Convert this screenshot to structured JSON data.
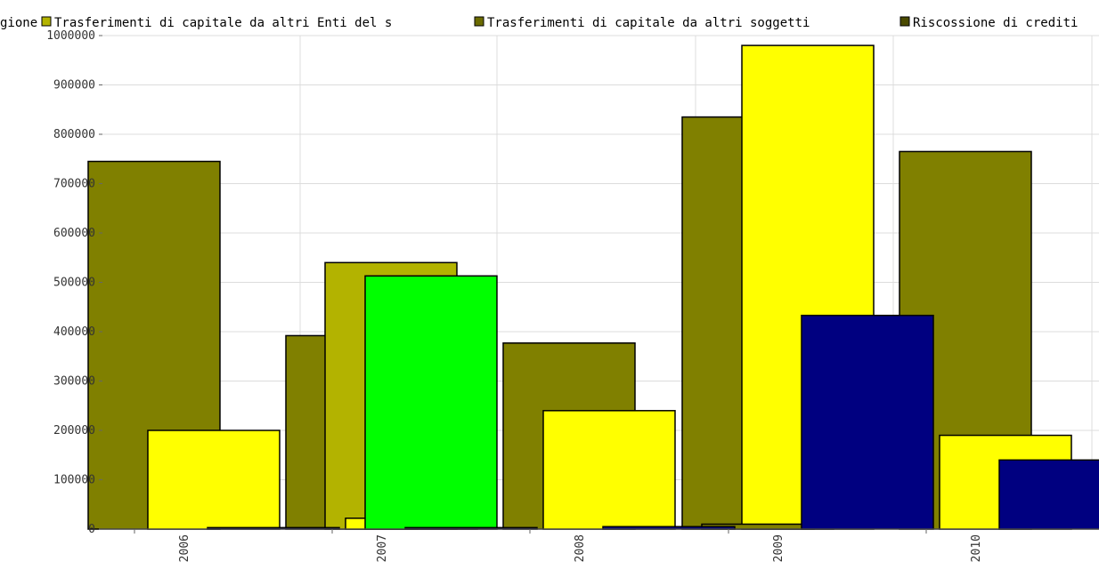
{
  "chart_data": {
    "type": "bar",
    "categories": [
      "2006",
      "2007",
      "2008",
      "2009",
      "2010"
    ],
    "ylim": [
      0,
      1000000
    ],
    "y_ticks": [
      0,
      100000,
      200000,
      300000,
      400000,
      500000,
      600000,
      700000,
      800000,
      900000,
      1000000
    ],
    "grid": true,
    "legend_position": "top",
    "legend_entries": [
      {
        "label": "gione",
        "color": "#808000"
      },
      {
        "label": "Trasferimenti di capitale da altri Enti del s",
        "color": "#b3b300"
      },
      {
        "label": "Trasferimenti di capitale da altri soggetti",
        "color": "#6b6b00"
      },
      {
        "label": "Riscossione di crediti",
        "color": "#4a4a00"
      }
    ],
    "series": [
      {
        "color": "#808000",
        "values": [
          745000,
          392000,
          0,
          835000,
          0
        ]
      },
      {
        "color": "#808000",
        "values": [
          0,
          0,
          377000,
          0,
          765000
        ]
      },
      {
        "color": "#b3b300",
        "values": [
          0,
          540000,
          0,
          0,
          0
        ]
      },
      {
        "color": "#ffff00",
        "values": [
          200000,
          22000,
          240000,
          980000,
          190000
        ]
      },
      {
        "color": "#00ff00",
        "values": [
          0,
          513000,
          0,
          0,
          0
        ]
      },
      {
        "color": "#808000",
        "values": [
          0,
          0,
          0,
          10000,
          0
        ]
      },
      {
        "color": "#000080",
        "values": [
          3000,
          3000,
          5000,
          433000,
          140000
        ]
      }
    ]
  }
}
